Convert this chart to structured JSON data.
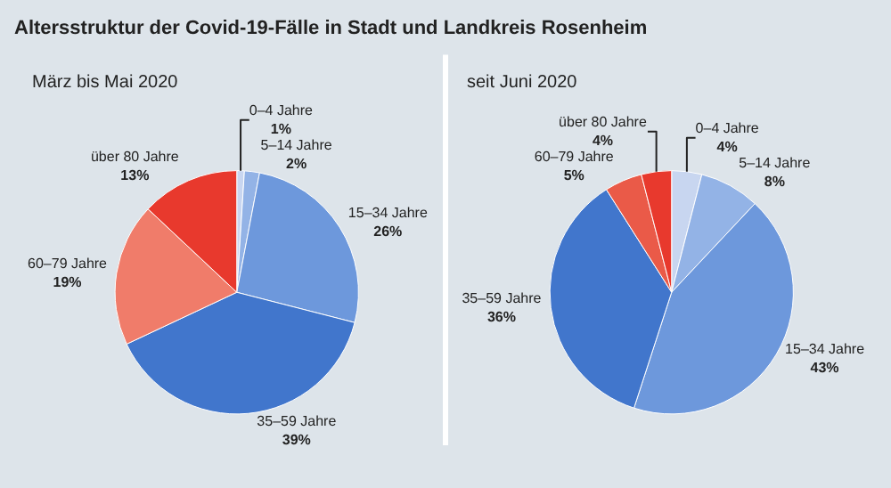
{
  "chart_data": [
    {
      "type": "pie",
      "title": "Altersstruktur der Covid-19-Fälle in Stadt und Landkreis Rosenheim",
      "subtitle": "März bis Mai 2020",
      "categories": [
        "0–4 Jahre",
        "5–14 Jahre",
        "15–34 Jahre",
        "35–59 Jahre",
        "60–79 Jahre",
        "über 80 Jahre"
      ],
      "values": [
        1,
        2,
        26,
        39,
        19,
        13
      ],
      "colors": [
        "#c8d6f0",
        "#93b3e6",
        "#6d98dc",
        "#4176cc",
        "#f07c6a",
        "#e8392d"
      ],
      "value_labels": [
        "1%",
        "2%",
        "26%",
        "39%",
        "19%",
        "13%"
      ]
    },
    {
      "type": "pie",
      "subtitle": "seit Juni 2020",
      "categories": [
        "0–4 Jahre",
        "5–14 Jahre",
        "15–34 Jahre",
        "35–59 Jahre",
        "60–79 Jahre",
        "über 80 Jahre"
      ],
      "values": [
        4,
        8,
        43,
        36,
        5,
        4
      ],
      "colors": [
        "#c8d6f0",
        "#93b3e6",
        "#6d98dc",
        "#4176cc",
        "#ea5a48",
        "#e8392d"
      ],
      "value_labels": [
        "4%",
        "8%",
        "43%",
        "36%",
        "5%",
        "4%"
      ]
    }
  ]
}
